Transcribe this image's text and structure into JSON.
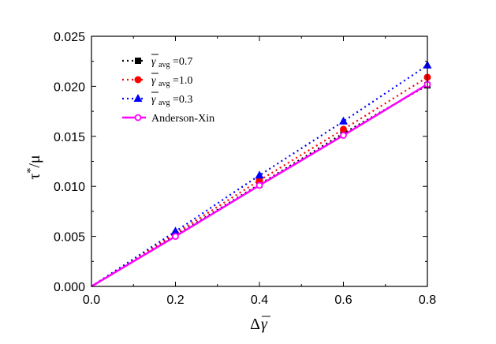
{
  "chart_data": {
    "type": "line",
    "xlabel": "Δγ̄",
    "xlabel_parts": {
      "prefix": "Δ",
      "symbol": "γ"
    },
    "ylabel": "τ*/μ",
    "ylabel_parts": {
      "tau": "τ",
      "star": "*",
      "slash": "/",
      "mu": "μ"
    },
    "xlim": [
      0.0,
      0.8
    ],
    "ylim": [
      0.0,
      0.025
    ],
    "x_ticks": [
      0.0,
      0.2,
      0.4,
      0.6,
      0.8
    ],
    "x_tick_labels": [
      "0.0",
      "0.2",
      "0.4",
      "0.6",
      "0.8"
    ],
    "y_ticks": [
      0.0,
      0.005,
      0.01,
      0.015,
      0.02,
      0.025
    ],
    "y_tick_labels": [
      "0.000",
      "0.005",
      "0.010",
      "0.015",
      "0.020",
      "0.025"
    ],
    "grid": false,
    "legend_position": "top-left",
    "series": [
      {
        "name": "γ̄avg=0.7",
        "label_symbol": "γ",
        "label_sub": "avg",
        "label_value": "=0.7",
        "color": "#000000",
        "marker": "square",
        "line": "dotted",
        "x": [
          0.0,
          0.2,
          0.4,
          0.6,
          0.8
        ],
        "values": [
          0.0,
          0.0051,
          0.0102,
          0.0153,
          0.0201
        ]
      },
      {
        "name": "γ̄avg=1.0",
        "label_symbol": "γ",
        "label_sub": "avg",
        "label_value": "=1.0",
        "color": "#ff0000",
        "marker": "circle",
        "line": "dotted",
        "x": [
          0.0,
          0.2,
          0.4,
          0.6,
          0.8
        ],
        "values": [
          0.0,
          0.0053,
          0.0106,
          0.0157,
          0.0209
        ]
      },
      {
        "name": "γ̄avg=0.3",
        "label_symbol": "γ",
        "label_sub": "avg",
        "label_value": "=0.3",
        "color": "#0000ff",
        "marker": "triangle",
        "line": "dotted",
        "x": [
          0.0,
          0.2,
          0.4,
          0.6,
          0.8
        ],
        "values": [
          0.0,
          0.0055,
          0.0111,
          0.0165,
          0.0221
        ]
      },
      {
        "name": "Anderson-Xin",
        "color": "#ff00ff",
        "marker": "open-circle",
        "line": "solid",
        "x": [
          0.0,
          0.2,
          0.4,
          0.6,
          0.8
        ],
        "values": [
          0.0,
          0.005,
          0.0101,
          0.0151,
          0.0202
        ]
      }
    ]
  }
}
